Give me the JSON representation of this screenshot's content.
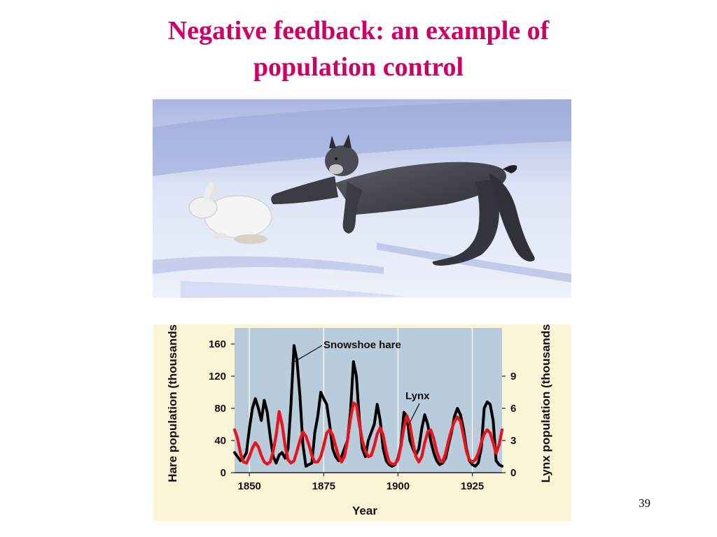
{
  "slide": {
    "title_line1": "Negative feedback: an example of",
    "title_line2": "population control",
    "page_number": "39",
    "title_color": "#cc0066"
  },
  "photo": {
    "subject": "lynx chasing snowshoe hare on snow"
  },
  "chart_data": {
    "type": "line",
    "xlabel": "Year",
    "ylabel": "Hare population (thousands)",
    "y2label": "Lynx population (thousands)",
    "xlim": [
      1845,
      1935
    ],
    "ylim": [
      0,
      180
    ],
    "y2lim": [
      0,
      13.5
    ],
    "xticks": [
      1850,
      1875,
      1900,
      1925
    ],
    "yticks": [
      0,
      40,
      80,
      120,
      160
    ],
    "y2ticks": [
      0,
      3,
      6,
      9
    ],
    "grid": "vertical at 1850, 1875, 1900, 1925",
    "plot_background": "#b8ccdc",
    "figure_background": "#fbf4d6",
    "annotations": [
      "Snowshoe hare",
      "Lynx"
    ],
    "series": [
      {
        "color": "#000000",
        "axis": "left",
        "x": [
          1845,
          1846,
          1847,
          1848,
          1849,
          1850,
          1851,
          1852,
          1853,
          1854,
          1855,
          1856,
          1857,
          1858,
          1859,
          1860,
          1861,
          1862,
          1863,
          1864,
          1865,
          1866,
          1867,
          1868,
          1869,
          1870,
          1871,
          1872,
          1873,
          1874,
          1875,
          1876,
          1877,
          1878,
          1879,
          1880,
          1881,
          1882,
          1883,
          1884,
          1885,
          1886,
          1887,
          1888,
          1889,
          1890,
          1891,
          1892,
          1893,
          1894,
          1895,
          1896,
          1897,
          1898,
          1899,
          1900,
          1901,
          1902,
          1903,
          1904,
          1905,
          1906,
          1907,
          1908,
          1909,
          1910,
          1911,
          1912,
          1913,
          1914,
          1915,
          1916,
          1917,
          1918,
          1919,
          1920,
          1921,
          1922,
          1923,
          1924,
          1925,
          1926,
          1927,
          1928,
          1929,
          1930,
          1931,
          1932,
          1933,
          1934,
          1935
        ],
        "values": [
          25,
          20,
          15,
          18,
          25,
          55,
          80,
          92,
          80,
          65,
          90,
          75,
          45,
          20,
          12,
          22,
          25,
          18,
          30,
          85,
          158,
          140,
          95,
          35,
          8,
          10,
          12,
          50,
          70,
          100,
          92,
          85,
          60,
          30,
          20,
          15,
          20,
          30,
          40,
          75,
          138,
          120,
          65,
          30,
          20,
          40,
          50,
          60,
          85,
          65,
          30,
          15,
          10,
          8,
          10,
          18,
          35,
          75,
          70,
          40,
          30,
          22,
          30,
          55,
          72,
          60,
          40,
          25,
          15,
          10,
          12,
          18,
          35,
          50,
          70,
          80,
          72,
          55,
          30,
          15,
          10,
          8,
          12,
          30,
          80,
          88,
          85,
          65,
          15,
          10,
          8
        ]
      },
      {
        "color": "#e8141c",
        "axis": "right",
        "x": [
          1845,
          1846,
          1847,
          1848,
          1849,
          1850,
          1851,
          1852,
          1853,
          1854,
          1855,
          1856,
          1857,
          1858,
          1859,
          1860,
          1861,
          1862,
          1863,
          1864,
          1865,
          1866,
          1867,
          1868,
          1869,
          1870,
          1871,
          1872,
          1873,
          1874,
          1875,
          1876,
          1877,
          1878,
          1879,
          1880,
          1881,
          1882,
          1883,
          1884,
          1885,
          1886,
          1887,
          1888,
          1889,
          1890,
          1891,
          1892,
          1893,
          1894,
          1895,
          1896,
          1897,
          1898,
          1899,
          1900,
          1901,
          1902,
          1903,
          1904,
          1905,
          1906,
          1907,
          1908,
          1909,
          1910,
          1911,
          1912,
          1913,
          1914,
          1915,
          1916,
          1917,
          1918,
          1919,
          1920,
          1921,
          1922,
          1923,
          1924,
          1925,
          1926,
          1927,
          1928,
          1929,
          1930,
          1931,
          1932,
          1933,
          1934,
          1935
        ],
        "values": [
          4.0,
          3.2,
          1.8,
          1.0,
          0.9,
          1.5,
          2.3,
          2.8,
          2.4,
          1.6,
          1.0,
          0.8,
          1.0,
          2.0,
          3.5,
          5.7,
          4.5,
          2.5,
          1.2,
          0.9,
          1.1,
          2.0,
          3.0,
          3.8,
          3.4,
          2.6,
          1.6,
          1.0,
          1.0,
          1.5,
          2.5,
          3.7,
          4.0,
          3.5,
          2.5,
          1.5,
          1.0,
          1.5,
          3.0,
          5.0,
          6.5,
          6.3,
          4.5,
          3.0,
          2.0,
          1.5,
          1.6,
          2.5,
          3.6,
          4.2,
          3.5,
          2.0,
          1.0,
          0.8,
          0.8,
          1.2,
          2.5,
          4.2,
          5.3,
          4.5,
          2.8,
          1.5,
          1.0,
          1.5,
          2.8,
          3.8,
          4.0,
          3.2,
          2.0,
          1.2,
          1.0,
          1.8,
          3.0,
          4.0,
          4.8,
          5.2,
          4.8,
          3.5,
          2.0,
          1.2,
          1.0,
          1.2,
          1.8,
          2.8,
          3.6,
          4.0,
          3.7,
          2.8,
          1.8,
          2.6,
          4.0
        ]
      }
    ]
  }
}
